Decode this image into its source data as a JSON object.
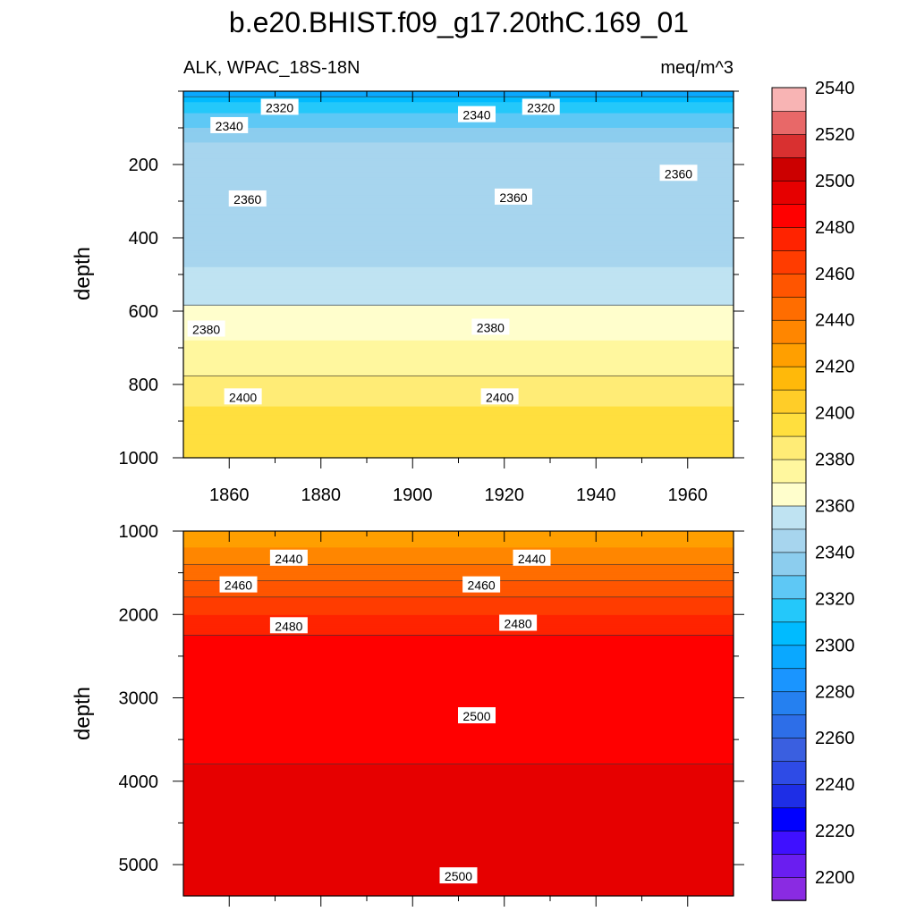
{
  "chart_data": {
    "type": "heatmap",
    "title": "b.e20.BHIST.f09_g17.20thC.169_01",
    "variable_label": "ALK, WPAC_18S-18N",
    "units_label": "meq/m^3",
    "colorbar": {
      "levels": [
        2200,
        2210,
        2220,
        2230,
        2240,
        2250,
        2260,
        2270,
        2280,
        2290,
        2300,
        2310,
        2320,
        2330,
        2340,
        2350,
        2360,
        2370,
        2380,
        2390,
        2400,
        2410,
        2420,
        2430,
        2440,
        2450,
        2460,
        2470,
        2480,
        2490,
        2500,
        2510,
        2520,
        2530,
        2540,
        2550
      ],
      "tick_labels": [
        "2200",
        "2220",
        "2240",
        "2260",
        "2280",
        "2300",
        "2320",
        "2340",
        "2360",
        "2380",
        "2400",
        "2420",
        "2440",
        "2460",
        "2480",
        "2500",
        "2520",
        "2540"
      ],
      "colors": [
        "#8a2be2",
        "#6a1ef0",
        "#3f10ff",
        "#0000ff",
        "#1e2ee6",
        "#2e4be6",
        "#3a5fe0",
        "#2d6ee8",
        "#2580f0",
        "#1a95ff",
        "#0aa8ff",
        "#00bbff",
        "#24c8fa",
        "#5ec8f5",
        "#8ccdee",
        "#a7d5ee",
        "#bfe3f2",
        "#fffecc",
        "#fff79e",
        "#ffec76",
        "#ffdf3e",
        "#ffcd28",
        "#ffb90a",
        "#ff9f00",
        "#ff8600",
        "#ff6d00",
        "#ff5500",
        "#ff3c00",
        "#ff2300",
        "#ff0000",
        "#e60000",
        "#cc0000",
        "#d93030",
        "#e86868",
        "#f8b4b4"
      ]
    },
    "panels": [
      {
        "name": "upper",
        "ylabel": "depth",
        "xlim": [
          1850,
          1970
        ],
        "ylim": [
          0,
          1000
        ],
        "y_reversed": true,
        "x_ticks": [
          "1860",
          "1880",
          "1900",
          "1920",
          "1940",
          "1960"
        ],
        "y_ticks": [
          "200",
          "400",
          "600",
          "800",
          "1000"
        ],
        "depth_profile": [
          {
            "depth": 0,
            "value": 2300
          },
          {
            "depth": 30,
            "value": 2320
          },
          {
            "depth": 60,
            "value": 2330
          },
          {
            "depth": 100,
            "value": 2340
          },
          {
            "depth": 140,
            "value": 2350
          },
          {
            "depth": 200,
            "value": 2352
          },
          {
            "depth": 300,
            "value": 2355
          },
          {
            "depth": 400,
            "value": 2358
          },
          {
            "depth": 480,
            "value": 2360
          },
          {
            "depth": 550,
            "value": 2366
          },
          {
            "depth": 600,
            "value": 2372
          },
          {
            "depth": 680,
            "value": 2380
          },
          {
            "depth": 760,
            "value": 2388
          },
          {
            "depth": 860,
            "value": 2400
          },
          {
            "depth": 1000,
            "value": 2408
          }
        ],
        "contour_labels": [
          {
            "text": "2320",
            "year": 1871,
            "depth": 45
          },
          {
            "text": "2340",
            "year": 1860,
            "depth": 95
          },
          {
            "text": "2340",
            "year": 1914,
            "depth": 65
          },
          {
            "text": "2320",
            "year": 1928,
            "depth": 45
          },
          {
            "text": "2360",
            "year": 1958,
            "depth": 225
          },
          {
            "text": "2360",
            "year": 1864,
            "depth": 295
          },
          {
            "text": "2360",
            "year": 1922,
            "depth": 290
          },
          {
            "text": "2380",
            "year": 1855,
            "depth": 650
          },
          {
            "text": "2380",
            "year": 1917,
            "depth": 645
          },
          {
            "text": "2400",
            "year": 1863,
            "depth": 835
          },
          {
            "text": "2400",
            "year": 1919,
            "depth": 835
          }
        ]
      },
      {
        "name": "lower",
        "ylabel": "depth",
        "xlim": [
          1850,
          1970
        ],
        "ylim": [
          1000,
          5375
        ],
        "y_reversed": true,
        "x_ticks": [],
        "y_ticks": [
          "1000",
          "2000",
          "3000",
          "4000",
          "5000"
        ],
        "depth_profile": [
          {
            "depth": 1000,
            "value": 2430
          },
          {
            "depth": 1200,
            "value": 2440
          },
          {
            "depth": 1500,
            "value": 2455
          },
          {
            "depth": 1750,
            "value": 2468
          },
          {
            "depth": 2000,
            "value": 2480
          },
          {
            "depth": 2300,
            "value": 2492
          },
          {
            "depth": 3000,
            "value": 2499
          },
          {
            "depth": 5375,
            "value": 2502
          }
        ],
        "contour_labels": [
          {
            "text": "2440",
            "year": 1873,
            "depth": 1330
          },
          {
            "text": "2440",
            "year": 1926,
            "depth": 1330
          },
          {
            "text": "2460",
            "year": 1862,
            "depth": 1650
          },
          {
            "text": "2460",
            "year": 1915,
            "depth": 1650
          },
          {
            "text": "2480",
            "year": 1873,
            "depth": 2140
          },
          {
            "text": "2480",
            "year": 1923,
            "depth": 2110
          },
          {
            "text": "2500",
            "year": 1914,
            "depth": 3220
          },
          {
            "text": "2500",
            "year": 1910,
            "depth": 5140
          }
        ]
      }
    ]
  }
}
